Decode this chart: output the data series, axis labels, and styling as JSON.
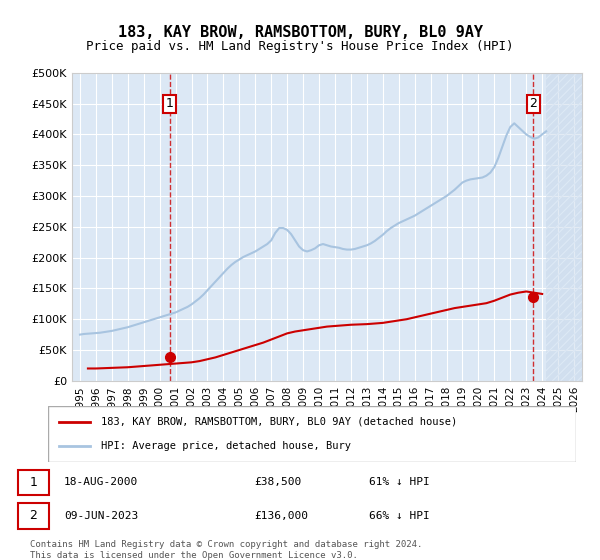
{
  "title": "183, KAY BROW, RAMSBOTTOM, BURY, BL0 9AY",
  "subtitle": "Price paid vs. HM Land Registry's House Price Index (HPI)",
  "hpi_color": "#a8c4e0",
  "sale_color": "#cc0000",
  "marker_color": "#cc0000",
  "bg_color": "#e8f0f8",
  "plot_bg": "#dce8f5",
  "hatch_color": "#c8d8ea",
  "ylim": [
    0,
    500000
  ],
  "yticks": [
    0,
    50000,
    100000,
    150000,
    200000,
    250000,
    300000,
    350000,
    400000,
    450000,
    500000
  ],
  "ytick_labels": [
    "£0",
    "£50K",
    "£100K",
    "£150K",
    "£200K",
    "£250K",
    "£300K",
    "£350K",
    "£400K",
    "£450K",
    "£500K"
  ],
  "xlim_start": 1994.5,
  "xlim_end": 2026.5,
  "xticks": [
    1995,
    1996,
    1997,
    1998,
    1999,
    2000,
    2001,
    2002,
    2003,
    2004,
    2005,
    2006,
    2007,
    2008,
    2009,
    2010,
    2011,
    2012,
    2013,
    2014,
    2015,
    2016,
    2017,
    2018,
    2019,
    2020,
    2021,
    2022,
    2023,
    2024,
    2025,
    2026
  ],
  "sale1_x": 2000.63,
  "sale1_y": 38500,
  "sale1_label": "1",
  "sale2_x": 2023.44,
  "sale2_y": 136000,
  "sale2_label": "2",
  "legend_line1": "183, KAY BROW, RAMSBOTTOM, BURY, BL0 9AY (detached house)",
  "legend_line2": "HPI: Average price, detached house, Bury",
  "annotation1": "1    18-AUG-2000       £38,500       61% ↓ HPI",
  "annotation2": "2    09-JUN-2023       £136,000      66% ↓ HPI",
  "footer": "Contains HM Land Registry data © Crown copyright and database right 2024.\nThis data is licensed under the Open Government Licence v3.0.",
  "hpi_years": [
    1995,
    1995.25,
    1995.5,
    1995.75,
    1996,
    1996.25,
    1996.5,
    1996.75,
    1997,
    1997.25,
    1997.5,
    1997.75,
    1998,
    1998.25,
    1998.5,
    1998.75,
    1999,
    1999.25,
    1999.5,
    1999.75,
    2000,
    2000.25,
    2000.5,
    2000.75,
    2001,
    2001.25,
    2001.5,
    2001.75,
    2002,
    2002.25,
    2002.5,
    2002.75,
    2003,
    2003.25,
    2003.5,
    2003.75,
    2004,
    2004.25,
    2004.5,
    2004.75,
    2005,
    2005.25,
    2005.5,
    2005.75,
    2006,
    2006.25,
    2006.5,
    2006.75,
    2007,
    2007.25,
    2007.5,
    2007.75,
    2008,
    2008.25,
    2008.5,
    2008.75,
    2009,
    2009.25,
    2009.5,
    2009.75,
    2010,
    2010.25,
    2010.5,
    2010.75,
    2011,
    2011.25,
    2011.5,
    2011.75,
    2012,
    2012.25,
    2012.5,
    2012.75,
    2013,
    2013.25,
    2013.5,
    2013.75,
    2014,
    2014.25,
    2014.5,
    2014.75,
    2015,
    2015.25,
    2015.5,
    2015.75,
    2016,
    2016.25,
    2016.5,
    2016.75,
    2017,
    2017.25,
    2017.5,
    2017.75,
    2018,
    2018.25,
    2018.5,
    2018.75,
    2019,
    2019.25,
    2019.5,
    2019.75,
    2020,
    2020.25,
    2020.5,
    2020.75,
    2021,
    2021.25,
    2021.5,
    2021.75,
    2022,
    2022.25,
    2022.5,
    2022.75,
    2023,
    2023.25,
    2023.5,
    2023.75,
    2024,
    2024.25
  ],
  "hpi_values": [
    75000,
    76000,
    76500,
    77000,
    77500,
    78000,
    79000,
    80000,
    81000,
    82500,
    84000,
    85500,
    87000,
    89000,
    91000,
    93000,
    95000,
    97000,
    99000,
    101000,
    103000,
    105000,
    107000,
    109000,
    111000,
    114000,
    117000,
    120000,
    124000,
    129000,
    134000,
    140000,
    147000,
    154000,
    161000,
    168000,
    175000,
    182000,
    188000,
    193000,
    197000,
    201000,
    204000,
    207000,
    210000,
    214000,
    218000,
    222000,
    228000,
    240000,
    248000,
    248000,
    245000,
    238000,
    228000,
    218000,
    212000,
    210000,
    212000,
    215000,
    220000,
    222000,
    220000,
    218000,
    217000,
    216000,
    214000,
    213000,
    213000,
    214000,
    216000,
    218000,
    220000,
    223000,
    227000,
    232000,
    237000,
    243000,
    248000,
    252000,
    256000,
    259000,
    262000,
    265000,
    268000,
    272000,
    276000,
    280000,
    284000,
    288000,
    292000,
    296000,
    300000,
    305000,
    310000,
    316000,
    322000,
    325000,
    327000,
    328000,
    329000,
    330000,
    333000,
    338000,
    347000,
    362000,
    380000,
    398000,
    412000,
    418000,
    412000,
    406000,
    400000,
    396000,
    393000,
    395000,
    400000,
    405000
  ],
  "sale_years": [
    1995.5,
    1996,
    1996.5,
    1997,
    1997.5,
    1998,
    1998.5,
    1999,
    1999.5,
    2000,
    2000.5,
    2001,
    2001.5,
    2002,
    2002.5,
    2003,
    2003.5,
    2004,
    2004.5,
    2005,
    2005.5,
    2006,
    2006.5,
    2007,
    2007.5,
    2008,
    2008.5,
    2009,
    2009.5,
    2010,
    2010.5,
    2011,
    2011.5,
    2012,
    2012.5,
    2013,
    2013.5,
    2014,
    2014.5,
    2015,
    2015.5,
    2016,
    2016.5,
    2017,
    2017.5,
    2018,
    2018.5,
    2019,
    2019.5,
    2020,
    2020.5,
    2021,
    2021.5,
    2022,
    2022.5,
    2023,
    2023.5,
    2024
  ],
  "sale_line_values": [
    20000,
    20000,
    20500,
    21000,
    21500,
    22000,
    23000,
    24000,
    25000,
    26000,
    27000,
    28000,
    29000,
    30000,
    32000,
    35000,
    38000,
    42000,
    46000,
    50000,
    54000,
    58000,
    62000,
    67000,
    72000,
    77000,
    80000,
    82000,
    84000,
    86000,
    88000,
    89000,
    90000,
    91000,
    91500,
    92000,
    93000,
    94000,
    96000,
    98000,
    100000,
    103000,
    106000,
    109000,
    112000,
    115000,
    118000,
    120000,
    122000,
    124000,
    126000,
    130000,
    135000,
    140000,
    143000,
    145000,
    143000,
    141000
  ]
}
